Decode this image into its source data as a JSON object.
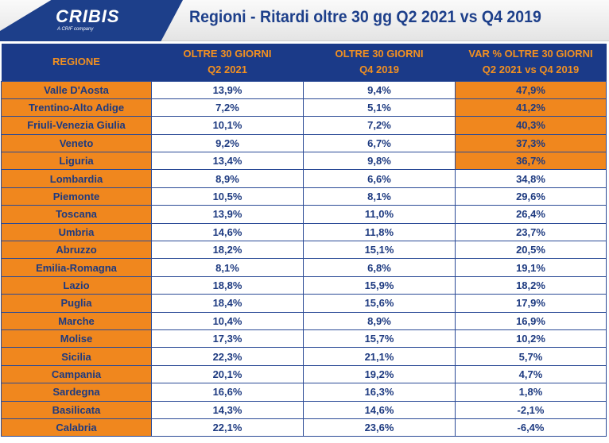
{
  "header": {
    "logo": "CRIBIS",
    "logo_tagline": "A CRIF company",
    "title": "Regioni - Ritardi oltre 30 gg Q2 2021 vs Q4 2019"
  },
  "colors": {
    "brand_blue": "#1b3a88",
    "orange": "#f0871e"
  },
  "table": {
    "columns": [
      {
        "line1": "REGIONE",
        "line2": ""
      },
      {
        "line1": "OLTRE 30 GIORNI",
        "line2": "Q2 2021"
      },
      {
        "line1": "OLTRE 30 GIORNI",
        "line2": "Q4 2019"
      },
      {
        "line1": "VAR % OLTRE 30 GIORNI",
        "line2": "Q2 2021 vs Q4 2019"
      }
    ],
    "rows": [
      {
        "region": "Valle D'Aosta",
        "q2_2021": "13,9%",
        "q4_2019": "9,4%",
        "var": "47,9%",
        "highlight": true
      },
      {
        "region": "Trentino-Alto Adige",
        "q2_2021": "7,2%",
        "q4_2019": "5,1%",
        "var": "41,2%",
        "highlight": true
      },
      {
        "region": "Friuli-Venezia Giulia",
        "q2_2021": "10,1%",
        "q4_2019": "7,2%",
        "var": "40,3%",
        "highlight": true
      },
      {
        "region": "Veneto",
        "q2_2021": "9,2%",
        "q4_2019": "6,7%",
        "var": "37,3%",
        "highlight": true
      },
      {
        "region": "Liguria",
        "q2_2021": "13,4%",
        "q4_2019": "9,8%",
        "var": "36,7%",
        "highlight": true
      },
      {
        "region": "Lombardia",
        "q2_2021": "8,9%",
        "q4_2019": "6,6%",
        "var": "34,8%",
        "highlight": false
      },
      {
        "region": "Piemonte",
        "q2_2021": "10,5%",
        "q4_2019": "8,1%",
        "var": "29,6%",
        "highlight": false
      },
      {
        "region": "Toscana",
        "q2_2021": "13,9%",
        "q4_2019": "11,0%",
        "var": "26,4%",
        "highlight": false
      },
      {
        "region": "Umbria",
        "q2_2021": "14,6%",
        "q4_2019": "11,8%",
        "var": "23,7%",
        "highlight": false
      },
      {
        "region": "Abruzzo",
        "q2_2021": "18,2%",
        "q4_2019": "15,1%",
        "var": "20,5%",
        "highlight": false
      },
      {
        "region": "Emilia-Romagna",
        "q2_2021": "8,1%",
        "q4_2019": "6,8%",
        "var": "19,1%",
        "highlight": false
      },
      {
        "region": "Lazio",
        "q2_2021": "18,8%",
        "q4_2019": "15,9%",
        "var": "18,2%",
        "highlight": false
      },
      {
        "region": "Puglia",
        "q2_2021": "18,4%",
        "q4_2019": "15,6%",
        "var": "17,9%",
        "highlight": false
      },
      {
        "region": "Marche",
        "q2_2021": "10,4%",
        "q4_2019": "8,9%",
        "var": "16,9%",
        "highlight": false
      },
      {
        "region": "Molise",
        "q2_2021": "17,3%",
        "q4_2019": "15,7%",
        "var": "10,2%",
        "highlight": false
      },
      {
        "region": "Sicilia",
        "q2_2021": "22,3%",
        "q4_2019": "21,1%",
        "var": "5,7%",
        "highlight": false
      },
      {
        "region": "Campania",
        "q2_2021": "20,1%",
        "q4_2019": "19,2%",
        "var": "4,7%",
        "highlight": false
      },
      {
        "region": "Sardegna",
        "q2_2021": "16,6%",
        "q4_2019": "16,3%",
        "var": "1,8%",
        "highlight": false
      },
      {
        "region": "Basilicata",
        "q2_2021": "14,3%",
        "q4_2019": "14,6%",
        "var": "-2,1%",
        "highlight": false
      },
      {
        "region": "Calabria",
        "q2_2021": "22,1%",
        "q4_2019": "23,6%",
        "var": "-6,4%",
        "highlight": false
      }
    ]
  }
}
